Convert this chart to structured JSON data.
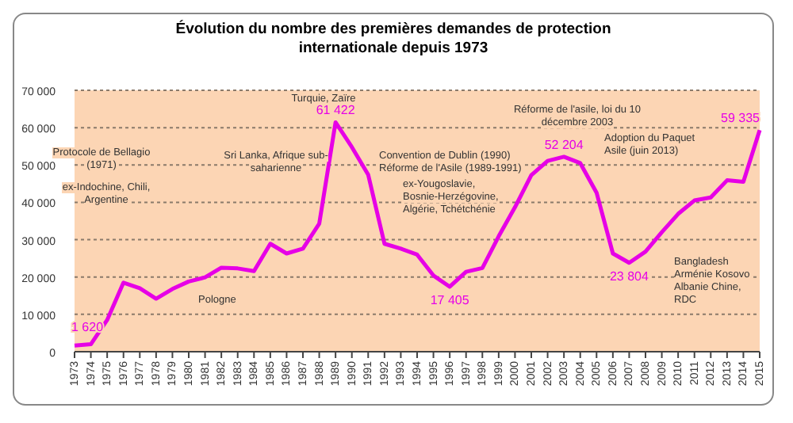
{
  "chart_data": {
    "type": "line",
    "title": "Évolution du nombre des premières demandes de protection internationale depuis 1973",
    "categories": [
      "1973",
      "1974",
      "1975",
      "1976",
      "1977",
      "1978",
      "1979",
      "1980",
      "1981",
      "1982",
      "1983",
      "1984",
      "1985",
      "1986",
      "1987",
      "1988",
      "1989",
      "1990",
      "1991",
      "1992",
      "1993",
      "1994",
      "1995",
      "1996",
      "1997",
      "1998",
      "1999",
      "2000",
      "2001",
      "2002",
      "2003",
      "2004",
      "2005",
      "2006",
      "2007",
      "2008",
      "2009",
      "2010",
      "2011",
      "2012",
      "2013",
      "2014",
      "2015"
    ],
    "series": [
      {
        "color": "#e600e6",
        "values": [
          1620,
          2000,
          8500,
          18500,
          17000,
          14200,
          16800,
          18800,
          19900,
          22500,
          22300,
          21600,
          28900,
          26300,
          27600,
          34300,
          61422,
          54800,
          47400,
          28900,
          27600,
          26000,
          20400,
          17405,
          21400,
          22400,
          30900,
          38700,
          47300,
          51100,
          52204,
          50500,
          42600,
          26300,
          23804,
          26800,
          32000,
          36900,
          40500,
          41300,
          45900,
          45500,
          59335
        ],
        "value_labels": [
          "1 620",
          null,
          null,
          null,
          null,
          null,
          null,
          null,
          null,
          null,
          null,
          null,
          null,
          null,
          null,
          null,
          "61 422",
          null,
          null,
          null,
          null,
          null,
          null,
          "17 405",
          null,
          null,
          null,
          null,
          null,
          null,
          "52 204",
          null,
          null,
          null,
          "23 804",
          null,
          null,
          null,
          null,
          null,
          null,
          null,
          "59 335"
        ]
      }
    ],
    "ylim": [
      0,
      70000
    ],
    "yticks": [
      0,
      {
        "value": 10000,
        "label": "10 000"
      },
      {
        "value": 20000,
        "label": "20 000"
      },
      {
        "value": 30000,
        "label": "30 000"
      },
      {
        "value": 40000,
        "label": "40 000"
      },
      {
        "value": 50000,
        "label": "50 000"
      },
      {
        "value": 60000,
        "label": "60 000"
      },
      {
        "value": 70000,
        "label": "70 000"
      }
    ],
    "grid": "y",
    "marker": "none",
    "line_style": "solid",
    "annotations": [
      "Protocole de Bellagio (1971)",
      "ex-Indochine, Chili, Argentine",
      "Pologne",
      "Sri Lanka, Afrique sub-saharienne",
      "Turquie, Zaïre",
      "Convention de Dublin (1990) Réforme de l'Asile (1989-1991)",
      "Réforme de l'asile, loi du 10 décembre 2003",
      "ex-Yougoslavie, Bosnie-Herzégovine, Algérie, Tchétchénie",
      "Adoption du Paquet Asile (juin 2013)",
      "Bangladesh Arménie Kosovo Albanie Chine, RDC"
    ]
  }
}
